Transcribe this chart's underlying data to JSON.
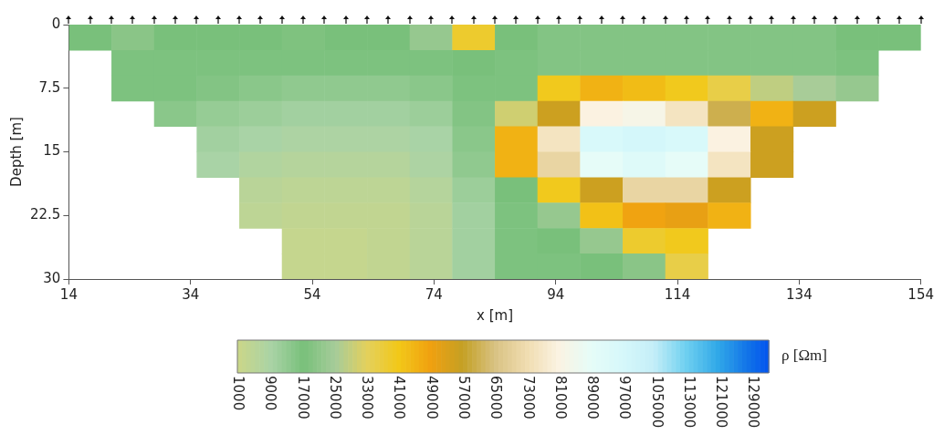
{
  "chart_data": {
    "type": "heatmap",
    "xlabel": "x [m]",
    "ylabel": "Depth [m]",
    "clabel": "ρ [Ωm]",
    "x": [
      17.5,
      24.5,
      31.5,
      38.5,
      45.5,
      52.5,
      59.5,
      66.5,
      73.5,
      80.5,
      87.5,
      94.5,
      101.5,
      108.5,
      115.5,
      122.5,
      129.5,
      136.5,
      143.5,
      150.5
    ],
    "y": [
      1.5,
      4.5,
      7.5,
      10.5,
      13.5,
      16.5,
      19.5,
      22.5,
      25.5,
      28.5
    ],
    "cells": [
      [
        17000,
        20000,
        17000,
        17000,
        17000,
        18000,
        17000,
        17000,
        22000,
        38000,
        17000,
        15000,
        15000,
        15000,
        15000,
        15000,
        15000,
        15000,
        17000,
        17000
      ],
      [
        null,
        16000,
        16000,
        16000,
        16000,
        16000,
        16000,
        16000,
        16000,
        17000,
        16000,
        15000,
        15000,
        15000,
        15000,
        15000,
        15000,
        15000,
        16000,
        null
      ],
      [
        null,
        16000,
        16000,
        15000,
        14000,
        13000,
        13000,
        13000,
        14000,
        16000,
        16000,
        40000,
        45000,
        43000,
        40000,
        35000,
        28000,
        25000,
        22000,
        null
      ],
      [
        null,
        null,
        14000,
        12000,
        11000,
        10000,
        10000,
        10000,
        11000,
        15000,
        30000,
        55000,
        80000,
        82000,
        75000,
        60000,
        45000,
        55000,
        null,
        null
      ],
      [
        null,
        null,
        null,
        10000,
        9000,
        8000,
        8000,
        8000,
        9000,
        14000,
        45000,
        75000,
        95000,
        97000,
        95000,
        80000,
        55000,
        null,
        null,
        null
      ],
      [
        null,
        null,
        null,
        9000,
        7000,
        6000,
        6000,
        6000,
        8000,
        13000,
        45000,
        70000,
        88000,
        92000,
        88000,
        75000,
        55000,
        null,
        null,
        null
      ],
      [
        null,
        null,
        null,
        null,
        5000,
        4000,
        4000,
        4000,
        6000,
        11000,
        17000,
        40000,
        55000,
        70000,
        70000,
        55000,
        null,
        null,
        null,
        null
      ],
      [
        null,
        null,
        null,
        null,
        4000,
        3000,
        3000,
        3000,
        5000,
        10000,
        16000,
        22000,
        42000,
        48000,
        50000,
        45000,
        null,
        null,
        null,
        null
      ],
      [
        null,
        null,
        null,
        null,
        null,
        2000,
        2000,
        3000,
        5000,
        10000,
        16000,
        17000,
        22000,
        38000,
        40000,
        null,
        null,
        null,
        null,
        null
      ],
      [
        null,
        null,
        null,
        null,
        null,
        2000,
        2000,
        3000,
        5000,
        10000,
        16000,
        16000,
        17000,
        20000,
        35000,
        null,
        null,
        null,
        null,
        null
      ]
    ],
    "xlim": [
      14,
      154
    ],
    "xticks": [
      14,
      34,
      54,
      74,
      94,
      114,
      134,
      154
    ],
    "ylim": [
      30,
      0
    ],
    "yticks": [
      0,
      7.5,
      15,
      22.5,
      30
    ],
    "clim": [
      1000,
      133000
    ],
    "cticks": [
      1000,
      9000,
      17000,
      25000,
      33000,
      41000,
      49000,
      57000,
      65000,
      73000,
      81000,
      89000,
      97000,
      105000,
      113000,
      121000,
      129000
    ],
    "grid": false,
    "legend": false
  }
}
